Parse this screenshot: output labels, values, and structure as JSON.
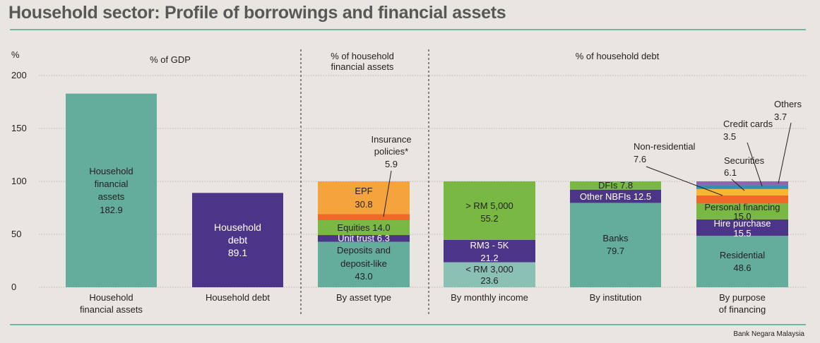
{
  "title": "Household sector: Profile of borrowings and financial assets",
  "source": "Bank Negara Malaysia",
  "colors": {
    "teal": "#64ac9b",
    "light_teal": "#8bc0b4",
    "purple": "#4c3489",
    "green": "#78b843",
    "orange": "#f4a33d",
    "red_orange": "#ef6a28",
    "pink": "#e07f8e",
    "blue": "#2f8fb4",
    "violet": "#8d67ad",
    "yellow": "#f7b733"
  },
  "chart_data": {
    "type": "bar",
    "ylabel": "%",
    "ylim": [
      0,
      200
    ],
    "yticks": [
      "0",
      "50",
      "100",
      "150",
      "200"
    ],
    "grid": true,
    "section_headers": [
      "% of GDP",
      "% of household financial assets",
      "% of household debt"
    ],
    "categories": [
      "Household financial assets",
      "Household debt",
      "By asset type",
      "By monthly income",
      "By institution",
      "By purpose of financing"
    ],
    "bars": [
      {
        "category": "Household financial assets",
        "segments": [
          {
            "label": "Household financial assets",
            "value": 182.9,
            "value_label": "182.9",
            "color": "#64ac9b"
          }
        ]
      },
      {
        "category": "Household debt",
        "segments": [
          {
            "label": "Household debt",
            "value": 89.1,
            "value_label": "89.1",
            "color": "#4c3489"
          }
        ]
      },
      {
        "category": "By asset type",
        "segments": [
          {
            "label": "Deposits and deposit-like",
            "value": 43.0,
            "value_label": "43.0",
            "color": "#64ac9b"
          },
          {
            "label": "Unit trust",
            "value": 6.3,
            "value_label": "6.3",
            "color": "#4c3489"
          },
          {
            "label": "Equities",
            "value": 14.0,
            "value_label": "14.0",
            "color": "#78b843"
          },
          {
            "label": "Insurance policies*",
            "value": 5.9,
            "value_label": "5.9",
            "color": "#ef6a28"
          },
          {
            "label": "EPF",
            "value": 30.8,
            "value_label": "30.8",
            "color": "#f4a33d"
          }
        ]
      },
      {
        "category": "By monthly income",
        "segments": [
          {
            "label": "< RM 3,000",
            "value": 23.6,
            "value_label": "23.6",
            "color": "#8bc0b4"
          },
          {
            "label": "RM3 - 5K",
            "value": 21.2,
            "value_label": "21.2",
            "color": "#4c3489"
          },
          {
            "label": "> RM 5,000",
            "value": 55.2,
            "value_label": "55.2",
            "color": "#78b843"
          }
        ]
      },
      {
        "category": "By institution",
        "segments": [
          {
            "label": "Banks",
            "value": 79.7,
            "value_label": "79.7",
            "color": "#64ac9b"
          },
          {
            "label": "Other NBFIs",
            "value": 12.5,
            "value_label": "12.5",
            "color": "#4c3489"
          },
          {
            "label": "DFIs",
            "value": 7.8,
            "value_label": "7.8",
            "color": "#78b843"
          }
        ]
      },
      {
        "category": "By purpose of financing",
        "segments": [
          {
            "label": "Residential",
            "value": 48.6,
            "value_label": "48.6",
            "color": "#64ac9b"
          },
          {
            "label": "Hire purchase",
            "value": 15.5,
            "value_label": "15.5",
            "color": "#4c3489"
          },
          {
            "label": "Personal financing",
            "value": 15.0,
            "value_label": "15.0",
            "color": "#78b843"
          },
          {
            "label": "Non-residential",
            "value": 7.6,
            "value_label": "7.6",
            "color": "#ef6a28"
          },
          {
            "label": "Securities",
            "value": 6.1,
            "value_label": "6.1",
            "color": "#f7b733"
          },
          {
            "label": "Credit cards",
            "value": 3.5,
            "value_label": "3.5",
            "color": "#2f8fb4"
          },
          {
            "label": "Others",
            "value": 3.7,
            "value_label": "3.7",
            "color": "#8d67ad"
          }
        ]
      }
    ]
  }
}
